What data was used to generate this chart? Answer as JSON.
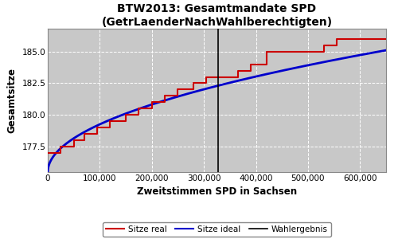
{
  "title": "BTW2013: Gesamtmandate SPD\n(GetrLaenderNachWahlberechtigten)",
  "xlabel": "Zweitstimmen SPD in Sachsen",
  "ylabel": "Gesamtsitze",
  "bg_color": "#c8c8c8",
  "wahlergebnis_x": 328000,
  "xlim": [
    0,
    650000
  ],
  "ylim": [
    175.5,
    186.8
  ],
  "yticks": [
    177.5,
    180.0,
    182.5,
    185.0
  ],
  "xticks": [
    0,
    100000,
    200000,
    300000,
    400000,
    500000,
    600000
  ],
  "ideal_x_start": 0,
  "ideal_x_end": 650000,
  "ideal_y_start": 175.5,
  "ideal_y_end": 185.1,
  "step_x": [
    0,
    25000,
    25001,
    50000,
    50001,
    70000,
    70001,
    95000,
    95001,
    120000,
    120001,
    150000,
    150001,
    175000,
    175001,
    200000,
    200001,
    225000,
    225001,
    250000,
    250001,
    280000,
    280001,
    305000,
    305001,
    330000,
    330001,
    365000,
    365001,
    390000,
    390001,
    420000,
    420001,
    450000,
    450001,
    490000,
    490001,
    530000,
    530001,
    555000,
    555001,
    590000,
    590001,
    650000
  ],
  "step_y": [
    177.0,
    177.0,
    177.5,
    177.5,
    178.0,
    178.0,
    178.5,
    178.5,
    179.0,
    179.0,
    179.5,
    179.5,
    180.0,
    180.0,
    180.5,
    180.5,
    181.0,
    181.0,
    181.5,
    181.5,
    182.0,
    182.0,
    182.5,
    182.5,
    183.0,
    183.0,
    183.0,
    183.5,
    183.5,
    184.0,
    184.0,
    185.0,
    185.0,
    185.0,
    185.0,
    185.0,
    185.0,
    185.5,
    185.5,
    186.0,
    186.0,
    186.0,
    186.0,
    186.0
  ],
  "legend_labels": [
    "Sitze real",
    "Sitze ideal",
    "Wahlergebnis"
  ],
  "legend_colors": [
    "#cc0000",
    "#0000cc",
    "#000000"
  ]
}
